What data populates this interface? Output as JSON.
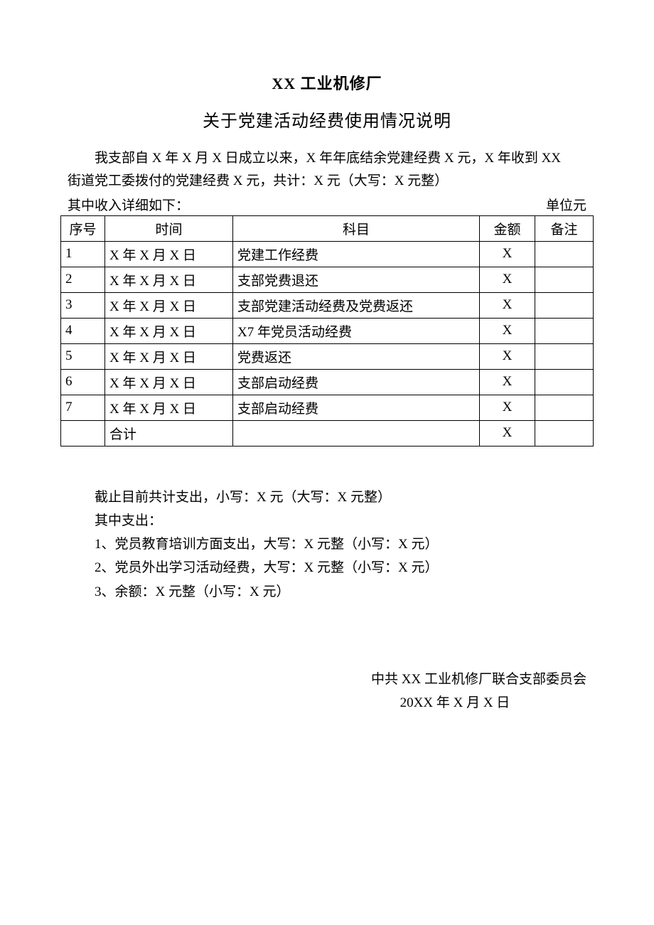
{
  "header": {
    "org": "XX 工业机修厂",
    "title": "关于党建活动经费使用情况说明"
  },
  "intro": {
    "line1": "我支部自 X 年 X 月 X 日成立以来，X 年年底结余党建经费 X 元，X 年收到 XX",
    "line2": "街道党工委拨付的党建经费 X 元，共计：X 元（大写：X 元整）"
  },
  "subhead": {
    "left": "其中收入详细如下：",
    "right": "单位元"
  },
  "table": {
    "headers": {
      "seq": "序号",
      "time": "时间",
      "subject": "科目",
      "amount": "金额",
      "note": "备注"
    },
    "rows": [
      {
        "seq": "1",
        "time": "X 年 X 月 X 日",
        "subject": "党建工作经费",
        "amount": "X",
        "note": ""
      },
      {
        "seq": "2",
        "time": "X 年 X 月 X 日",
        "subject": "支部党费退还",
        "amount": "X",
        "note": ""
      },
      {
        "seq": "3",
        "time": "X 年 X 月 X 日",
        "subject": "支部党建活动经费及党费返还",
        "amount": "X",
        "note": ""
      },
      {
        "seq": "4",
        "time": "X 年 X 月 X 日",
        "subject": "X7 年党员活动经费",
        "amount": "X",
        "note": ""
      },
      {
        "seq": "5",
        "time": "X 年 X 月 X 日",
        "subject": "党费返还",
        "amount": "X",
        "note": ""
      },
      {
        "seq": "6",
        "time": "X 年 X 月 X 日",
        "subject": "支部启动经费",
        "amount": "X",
        "note": ""
      },
      {
        "seq": "7",
        "time": "X 年 X 月 X 日",
        "subject": "支部启动经费",
        "amount": "X",
        "note": ""
      }
    ],
    "total": {
      "label": "合计",
      "amount": "X"
    }
  },
  "below": {
    "p1": "截止目前共计支出，小写：X 元（大写：X 元整）",
    "p2": "其中支出：",
    "p3": "1、党员教育培训方面支出，大写：X 元整（小写：X 元）",
    "p4": "2、党员外出学习活动经费，大写：X 元整（小写：X 元）",
    "p5": "3、余额：X 元整（小写：X 元）"
  },
  "signature": {
    "org": "中共 XX 工业机修厂联合支部委员会",
    "date": "20XX 年 X 月 X 日"
  },
  "styles": {
    "text_color": "#000000",
    "background_color": "#ffffff",
    "border_color": "#000000",
    "title_fontsize": 22,
    "subtitle_fontsize": 24,
    "body_fontsize": 19,
    "font_family": "SimSun"
  }
}
